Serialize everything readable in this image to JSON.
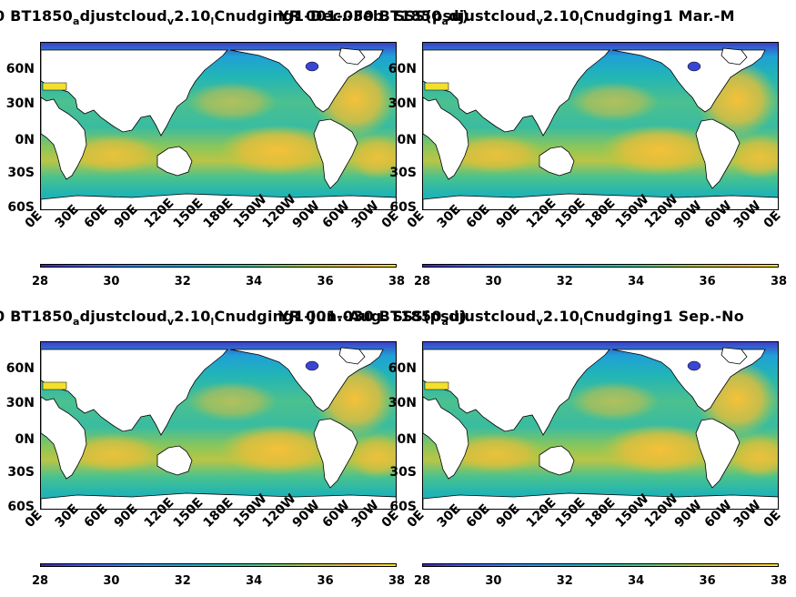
{
  "panels": [
    {
      "title_parts": [
        "0 BT1850",
        "a",
        "djustcloud",
        "v",
        "2.10",
        "l",
        "Cnudging1-Dec.-Feb. SSS(psu)"
      ],
      "title_overlap": "YR 001-030 BT1850",
      "title_overlap2": "a",
      "title_overlap3": "djustcloud",
      "title_overlap4": "v",
      "title_overlap5": "2.10",
      "title_overlap6": "l",
      "title_overlap7": "Cnudging1 Mar.-M",
      "season": "Dec.-Feb."
    },
    {
      "season": "Mar.-May"
    },
    {
      "title_parts": [
        "0 BT1850",
        "a",
        "djustcloud",
        "v",
        "2.10",
        "l",
        "Cnudging1-Jun.-Aug. SSS(psu)"
      ],
      "title_overlap": "YR 001-030 BT1850",
      "title_overlap2": "a",
      "title_overlap3": "djustcloud",
      "title_overlap4": "v",
      "title_overlap5": "2.10",
      "title_overlap6": "l",
      "title_overlap7": "Cnudging1 Sep.-No",
      "season": "Jun.-Aug."
    },
    {
      "season": "Sep.-Nov."
    }
  ],
  "lat_ticks": [
    "60N",
    "30N",
    "0N",
    "30S",
    "60S"
  ],
  "lon_ticks": [
    "0E",
    "30E",
    "60E",
    "90E",
    "120E",
    "150E",
    "180E",
    "150W",
    "120W",
    "90W",
    "60W",
    "30W",
    "0E"
  ],
  "colorbar": {
    "ticks": [
      "28",
      "30",
      "32",
      "34",
      "36",
      "38"
    ],
    "range": [
      28,
      38
    ],
    "colormap": "parula"
  },
  "colors": {
    "land": "#ffffff",
    "ocean_base": "#2fb8b0",
    "high_salinity": "#f2bf3a",
    "low_salinity": "#3a46d0"
  }
}
